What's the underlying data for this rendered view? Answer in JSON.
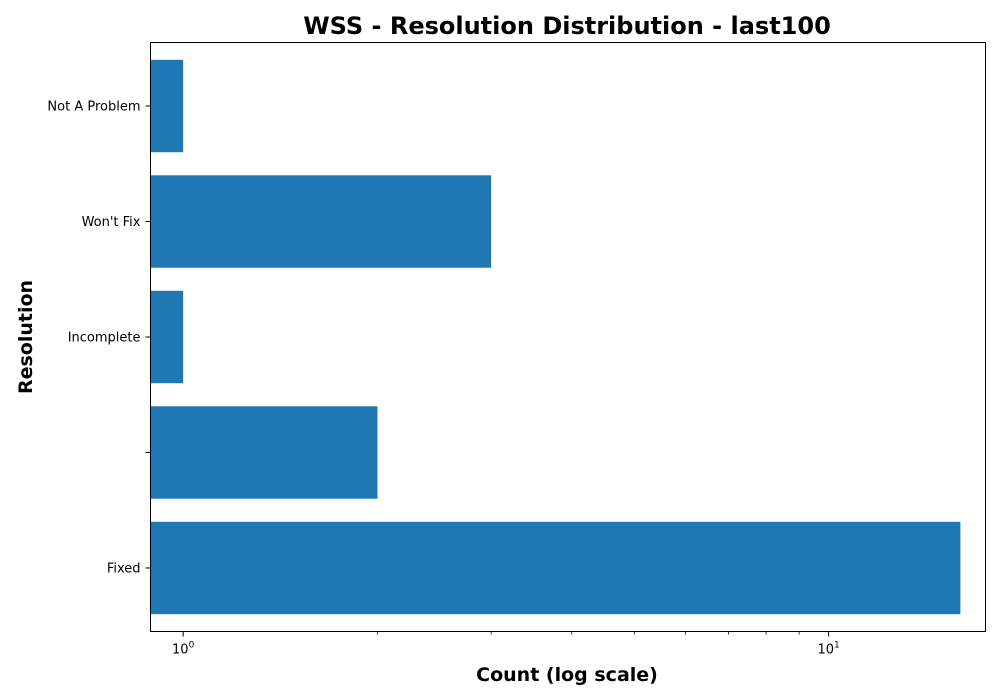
{
  "chart_data": {
    "type": "bar",
    "orientation": "horizontal",
    "title": "WSS - Resolution Distribution - last100",
    "xlabel": "Count (log scale)",
    "ylabel": "Resolution",
    "x_scale": "log",
    "xlim": [
      0.89,
      17.5
    ],
    "x_major_ticks": [
      {
        "value": 1,
        "base": "10",
        "exponent": "0"
      },
      {
        "value": 10,
        "base": "10",
        "exponent": "1"
      }
    ],
    "x_minor_ticks": [
      2,
      3,
      4,
      5,
      6,
      7,
      8,
      9
    ],
    "categories": [
      "Fixed",
      "",
      "Incomplete",
      "Won't Fix",
      "Not A Problem"
    ],
    "values": [
      16,
      2,
      1,
      3,
      1
    ],
    "bar_color": "#1f77b4",
    "grid": false
  }
}
